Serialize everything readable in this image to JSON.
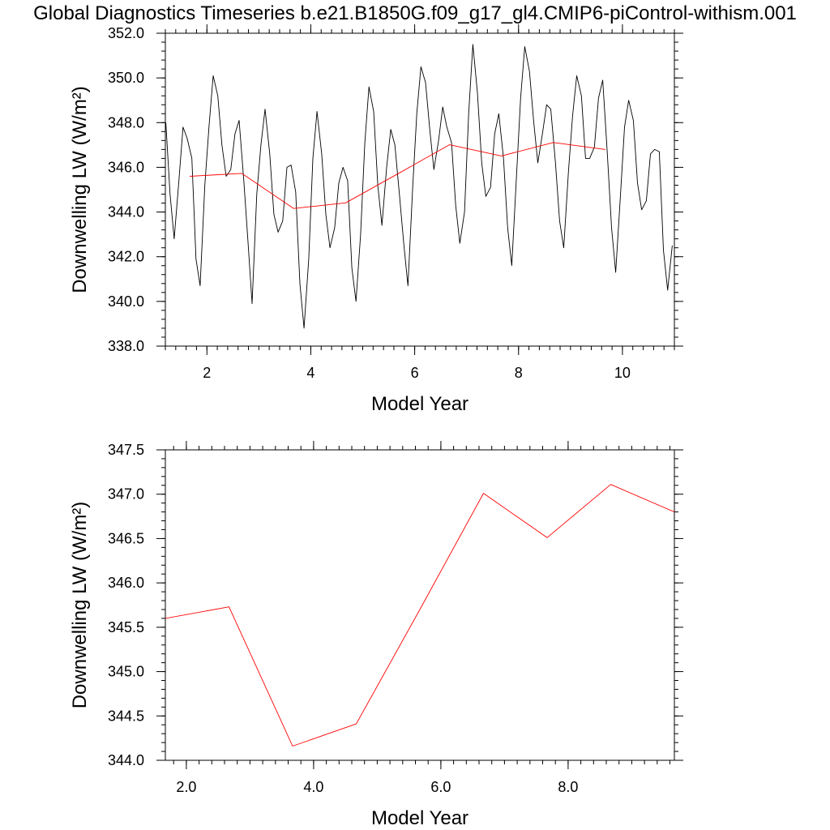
{
  "page": {
    "title": "Global Diagnostics Timeseries b.e21.B1850G.f09_g17_gl4.CMIP6-piControl-withism.001"
  },
  "chart_data": [
    {
      "type": "line",
      "xlabel": "Model Year",
      "ylabel": "Downwelling LW (W/m²)",
      "xlim": [
        1.2,
        11.0
      ],
      "ylim": [
        338.0,
        352.0
      ],
      "xticks": [
        2,
        4,
        6,
        8,
        10
      ],
      "xtick_labels": [
        "2",
        "4",
        "6",
        "8",
        "10"
      ],
      "yticks": [
        338.0,
        340.0,
        342.0,
        344.0,
        346.0,
        348.0,
        350.0,
        352.0
      ],
      "ytick_labels": [
        "338.0",
        "340.0",
        "342.0",
        "344.0",
        "346.0",
        "348.0",
        "350.0",
        "352.0"
      ],
      "grid": false,
      "series": [
        {
          "color": "#000000",
          "x": [
            1.21,
            1.29,
            1.37,
            1.46,
            1.54,
            1.62,
            1.71,
            1.79,
            1.87,
            1.96,
            2.04,
            2.12,
            2.21,
            2.29,
            2.37,
            2.46,
            2.54,
            2.62,
            2.71,
            2.79,
            2.87,
            2.96,
            3.04,
            3.12,
            3.21,
            3.29,
            3.37,
            3.46,
            3.54,
            3.62,
            3.71,
            3.79,
            3.87,
            3.96,
            4.04,
            4.12,
            4.21,
            4.29,
            4.37,
            4.46,
            4.54,
            4.62,
            4.71,
            4.79,
            4.87,
            4.96,
            5.04,
            5.12,
            5.21,
            5.29,
            5.37,
            5.46,
            5.54,
            5.62,
            5.71,
            5.79,
            5.87,
            5.96,
            6.04,
            6.12,
            6.21,
            6.29,
            6.37,
            6.46,
            6.54,
            6.62,
            6.71,
            6.79,
            6.87,
            6.96,
            7.04,
            7.12,
            7.21,
            7.29,
            7.37,
            7.46,
            7.54,
            7.62,
            7.71,
            7.79,
            7.87,
            7.96,
            8.04,
            8.12,
            8.21,
            8.29,
            8.37,
            8.46,
            8.54,
            8.62,
            8.71,
            8.79,
            8.87,
            8.96,
            9.04,
            9.12,
            9.21,
            9.29,
            9.37,
            9.46,
            9.54,
            9.62,
            9.71,
            9.79,
            9.87,
            9.96,
            10.04,
            10.12,
            10.21,
            10.29,
            10.37,
            10.46,
            10.54,
            10.62,
            10.71,
            10.79,
            10.87,
            10.96
          ],
          "y": [
            348.0,
            344.8,
            342.8,
            345.4,
            347.8,
            347.3,
            346.4,
            341.9,
            340.7,
            345.2,
            347.8,
            350.1,
            349.2,
            347.0,
            345.6,
            345.9,
            347.5,
            348.1,
            345.4,
            342.7,
            339.9,
            344.8,
            347.0,
            348.6,
            346.6,
            343.9,
            343.1,
            343.6,
            346.0,
            346.1,
            344.9,
            340.8,
            338.8,
            341.9,
            346.4,
            348.5,
            346.6,
            343.9,
            342.4,
            343.3,
            345.3,
            346.0,
            345.4,
            341.5,
            340.0,
            343.0,
            347.1,
            349.6,
            348.5,
            345.2,
            343.4,
            346.0,
            347.7,
            347.0,
            344.7,
            342.6,
            340.7,
            345.0,
            348.4,
            350.5,
            349.8,
            347.7,
            345.9,
            347.2,
            348.7,
            347.8,
            347.1,
            344.3,
            342.6,
            344.0,
            348.4,
            351.5,
            349.3,
            346.2,
            344.7,
            345.1,
            347.5,
            348.4,
            346.4,
            343.3,
            341.6,
            345.6,
            349.1,
            351.4,
            350.3,
            348.1,
            346.2,
            347.5,
            348.8,
            348.6,
            346.2,
            343.6,
            342.4,
            345.8,
            348.3,
            350.1,
            349.2,
            346.4,
            346.4,
            346.9,
            349.1,
            349.9,
            346.6,
            343.3,
            341.3,
            344.7,
            347.8,
            349.0,
            348.1,
            345.3,
            344.1,
            344.5,
            346.6,
            346.8,
            346.7,
            342.3,
            340.5,
            342.5
          ]
        },
        {
          "color": "#ff0000",
          "x": [
            1.67,
            2.67,
            3.67,
            4.67,
            5.67,
            6.67,
            7.67,
            8.67,
            9.67
          ],
          "y": [
            345.6,
            345.73,
            344.16,
            344.41,
            345.7,
            347.01,
            346.51,
            347.11,
            346.8
          ]
        }
      ]
    },
    {
      "type": "line",
      "xlabel": "Model Year",
      "ylabel": "Downwelling LW (W/m²)",
      "xlim": [
        1.67,
        9.67
      ],
      "ylim": [
        344.0,
        347.5
      ],
      "xticks": [
        2,
        4,
        6,
        8
      ],
      "xtick_labels": [
        "2.0",
        "4.0",
        "6.0",
        "8.0"
      ],
      "yticks": [
        344.0,
        344.5,
        345.0,
        345.5,
        346.0,
        346.5,
        347.0,
        347.5
      ],
      "ytick_labels": [
        "344.0",
        "344.5",
        "345.0",
        "345.5",
        "346.0",
        "346.5",
        "347.0",
        "347.5"
      ],
      "grid": false,
      "series": [
        {
          "color": "#ff0000",
          "x": [
            1.67,
            2.67,
            3.67,
            4.67,
            5.67,
            6.67,
            7.67,
            8.67,
            9.67
          ],
          "y": [
            345.6,
            345.73,
            344.16,
            344.41,
            345.7,
            347.01,
            346.51,
            347.11,
            346.8
          ]
        }
      ]
    }
  ]
}
